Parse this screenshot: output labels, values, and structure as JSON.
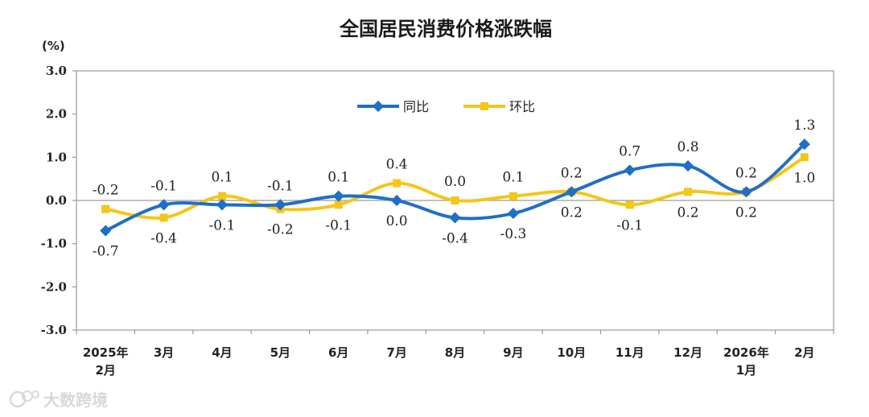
{
  "chart_data": {
    "type": "line",
    "title": "全国居民消费价格涨跌幅",
    "unit_label": "(%)",
    "ylim": [
      -3.0,
      3.0
    ],
    "yticks": [
      "3.0",
      "2.0",
      "1.0",
      "0.0",
      "-1.0",
      "-2.0",
      "-3.0"
    ],
    "ytick_values": [
      3,
      2,
      1,
      0,
      -1,
      -2,
      -3
    ],
    "categories": [
      [
        "2025年",
        "2月"
      ],
      [
        "3月"
      ],
      [
        "4月"
      ],
      [
        "5月"
      ],
      [
        "6月"
      ],
      [
        "7月"
      ],
      [
        "8月"
      ],
      [
        "9月"
      ],
      [
        "10月"
      ],
      [
        "11月"
      ],
      [
        "12月"
      ],
      [
        "2026年",
        "1月"
      ],
      [
        "2月"
      ]
    ],
    "legend_position": "top-center",
    "grid": false,
    "series": [
      {
        "name": "同比",
        "color": "#1f6fc5",
        "marker": "diamond",
        "values": [
          -0.7,
          -0.1,
          -0.1,
          -0.1,
          0.1,
          0.0,
          -0.4,
          -0.3,
          0.2,
          0.7,
          0.8,
          0.2,
          1.3
        ],
        "labels": [
          "-0.7",
          "-0.1",
          "-0.1",
          "-0.1",
          "0.1",
          "0.0",
          "-0.4",
          "-0.3",
          "0.2",
          "0.7",
          "0.8",
          "0.2",
          "1.3"
        ]
      },
      {
        "name": "环比",
        "color": "#f5c518",
        "marker": "square",
        "values": [
          -0.2,
          -0.4,
          0.1,
          -0.2,
          -0.1,
          0.4,
          0.0,
          0.1,
          0.2,
          -0.1,
          0.2,
          0.2,
          1.0
        ],
        "labels": [
          "-0.2",
          "-0.4",
          "0.1",
          "-0.2",
          "-0.1",
          "0.4",
          "0.0",
          "0.1",
          "0.2",
          "-0.1",
          "0.2",
          "0.2",
          "1.0"
        ]
      }
    ]
  },
  "watermark": {
    "text": "大数跨境"
  }
}
